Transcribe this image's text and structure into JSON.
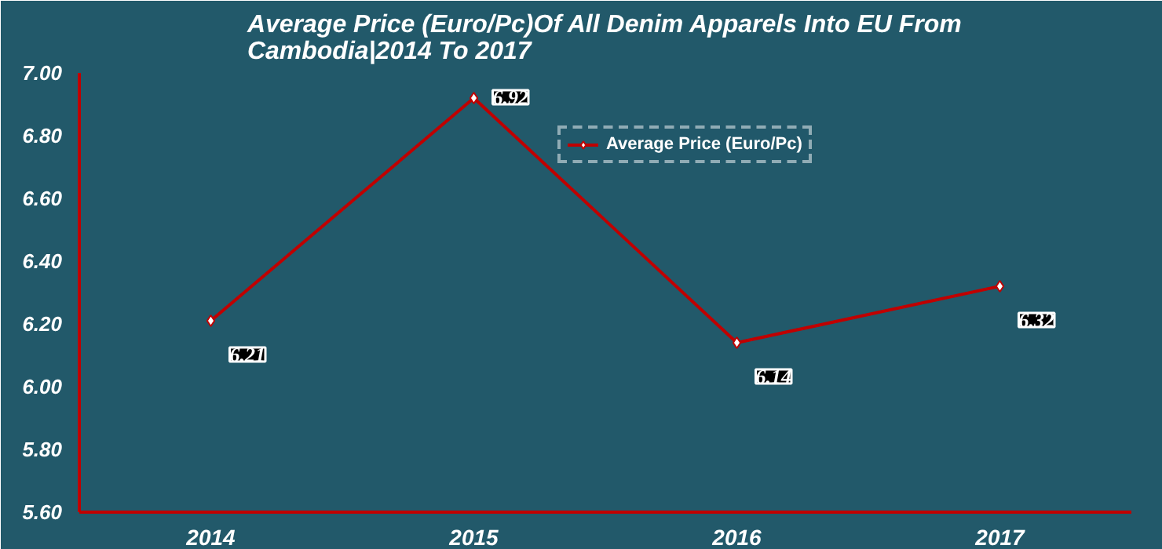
{
  "chart_data": {
    "type": "line",
    "title": "Average Price (Euro/Pc)Of All Denim Apparels Into EU From Cambodia|2014 To 2017",
    "categories": [
      "2014",
      "2015",
      "2016",
      "2017"
    ],
    "series": [
      {
        "name": "Average Price (Euro/Pc)",
        "color": "#c00000",
        "values": [
          6.21,
          6.92,
          6.14,
          6.32
        ]
      }
    ],
    "ylim": [
      5.6,
      7.0
    ],
    "yticks": [
      {
        "value": 5.6,
        "label": "5.60"
      },
      {
        "value": 5.8,
        "label": "5.80"
      },
      {
        "value": 6.0,
        "label": "6.00"
      },
      {
        "value": 6.2,
        "label": "6.20"
      },
      {
        "value": 6.4,
        "label": "6.40"
      },
      {
        "value": 6.6,
        "label": "6.60"
      },
      {
        "value": 6.8,
        "label": "6.80"
      },
      {
        "value": 7.0,
        "label": "7.00"
      }
    ],
    "data_labels": true,
    "legend": "top",
    "grid": false,
    "marker": "diamond",
    "line_style": "solid"
  }
}
